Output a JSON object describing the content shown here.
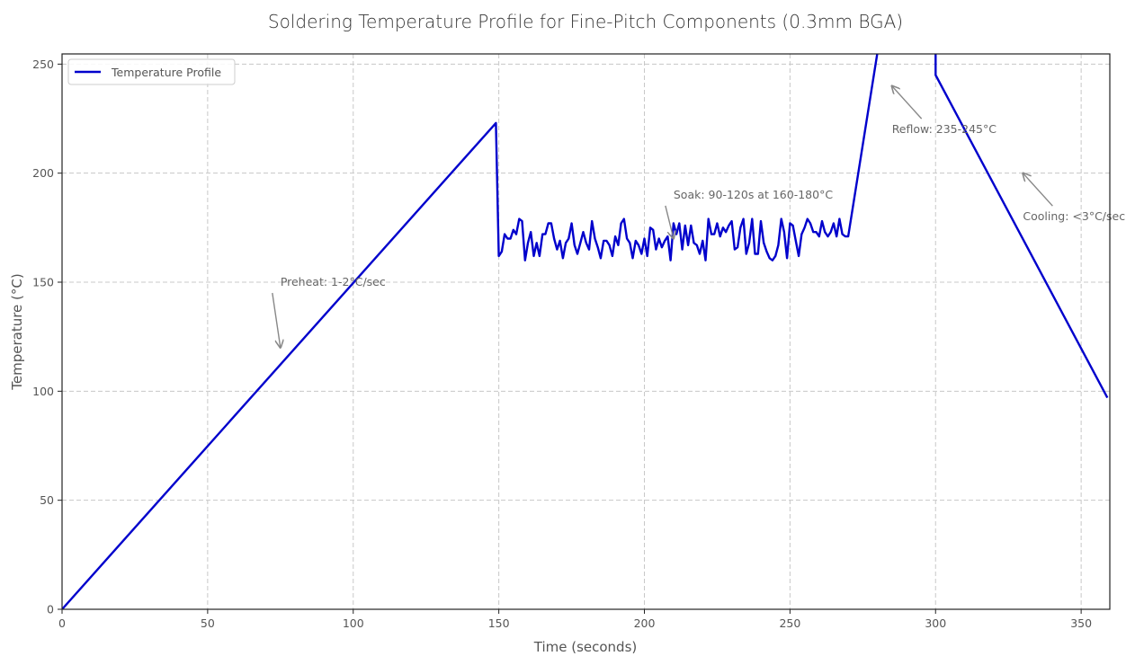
{
  "chart_data": {
    "type": "line",
    "title": "Soldering Temperature Profile for Fine-Pitch Components (0.3mm BGA)",
    "xlabel": "Time (seconds)",
    "ylabel": "Temperature (°C)",
    "xlim": [
      0,
      360
    ],
    "ylim": [
      0,
      255
    ],
    "xticks": [
      0,
      50,
      100,
      150,
      200,
      250,
      300,
      350
    ],
    "yticks": [
      0,
      50,
      100,
      150,
      200,
      250
    ],
    "grid": true,
    "legend_position": "upper left",
    "series": [
      {
        "name": "Temperature Profile",
        "color": "#0000cc",
        "x": [
          0,
          149,
          150,
          151,
          152,
          153,
          154,
          155,
          156,
          157,
          158,
          159,
          160,
          161,
          162,
          163,
          164,
          165,
          166,
          167,
          168,
          169,
          170,
          171,
          172,
          173,
          174,
          175,
          176,
          177,
          178,
          179,
          180,
          181,
          182,
          183,
          184,
          185,
          186,
          187,
          188,
          189,
          190,
          191,
          192,
          193,
          194,
          195,
          196,
          197,
          198,
          199,
          200,
          201,
          202,
          203,
          204,
          205,
          206,
          207,
          208,
          209,
          210,
          211,
          212,
          213,
          214,
          215,
          216,
          217,
          218,
          219,
          220,
          221,
          222,
          223,
          224,
          225,
          226,
          227,
          228,
          229,
          230,
          231,
          232,
          233,
          234,
          235,
          236,
          237,
          238,
          239,
          240,
          241,
          242,
          243,
          244,
          245,
          246,
          247,
          248,
          249,
          250,
          251,
          252,
          253,
          254,
          255,
          256,
          257,
          258,
          259,
          260,
          261,
          262,
          263,
          264,
          265,
          266,
          267,
          268,
          269,
          270,
          280,
          290,
          300,
          300.01,
          359
        ],
        "y": [
          0,
          223,
          162,
          164,
          172,
          170,
          170,
          174,
          172,
          179,
          178,
          160,
          168,
          173,
          162,
          168,
          162,
          172,
          172,
          177,
          177,
          170,
          165,
          169,
          161,
          168,
          170,
          177,
          167,
          163,
          168,
          173,
          168,
          165,
          178,
          170,
          166,
          161,
          169,
          169,
          167,
          162,
          171,
          167,
          177,
          179,
          170,
          168,
          161,
          169,
          167,
          163,
          170,
          162,
          175,
          174,
          165,
          170,
          166,
          169,
          171,
          160,
          177,
          172,
          177,
          165,
          176,
          167,
          176,
          168,
          167,
          163,
          169,
          160,
          179,
          172,
          172,
          177,
          171,
          175,
          173,
          176,
          178,
          165,
          166,
          175,
          179,
          163,
          168,
          179,
          163,
          163,
          178,
          168,
          164,
          161,
          160,
          162,
          167,
          179,
          173,
          161,
          177,
          176,
          169,
          162,
          172,
          175,
          179,
          177,
          173,
          173,
          171,
          178,
          173,
          171,
          173,
          177,
          171,
          179,
          172,
          171,
          171,
          255,
          255,
          255,
          245,
          97
        ]
      }
    ],
    "annotations": [
      {
        "text": "Preheat: 1-2°C/sec",
        "text_xy": [
          75,
          150
        ],
        "arrow_to": [
          75,
          120
        ]
      },
      {
        "text": "Soak: 90-120s at 160-180°C",
        "text_xy": [
          210,
          190
        ],
        "arrow_to": [
          210,
          170
        ]
      },
      {
        "text": "Reflow: 235-245°C",
        "text_xy": [
          285,
          220
        ],
        "arrow_to": [
          285,
          240
        ]
      },
      {
        "text": "Cooling: <3°C/sec",
        "text_xy": [
          330,
          180
        ],
        "arrow_to": [
          330,
          200
        ]
      }
    ]
  }
}
